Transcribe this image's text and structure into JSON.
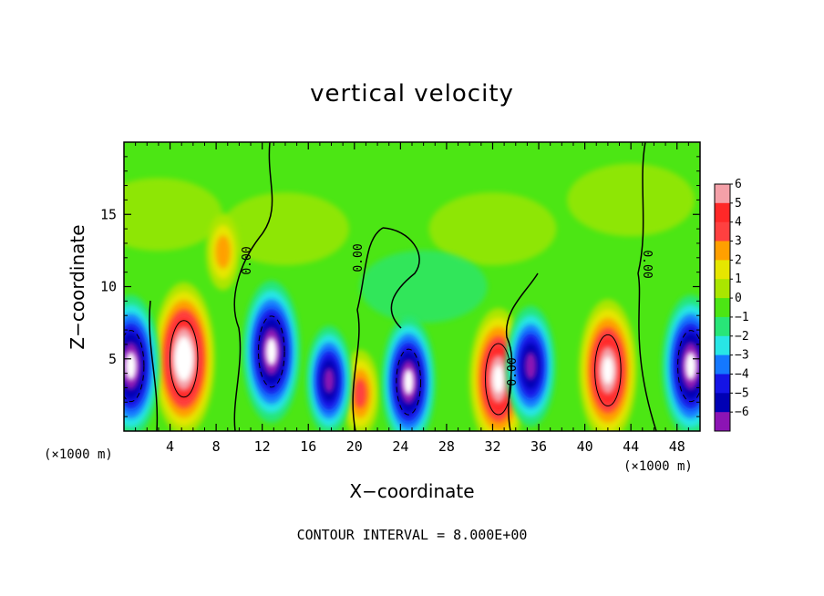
{
  "chart_data": {
    "type": "heatmap",
    "title": "vertical velocity",
    "xlabel": "X−coordinate",
    "ylabel": "Z−coordinate",
    "x_unit": "(×1000 m)",
    "xlim": [
      0,
      50
    ],
    "ylim": [
      0,
      20
    ],
    "x_ticks": [
      "4",
      "8",
      "12",
      "16",
      "20",
      "24",
      "28",
      "32",
      "36",
      "40",
      "44",
      "48"
    ],
    "x_tick_values": [
      4,
      8,
      12,
      16,
      20,
      24,
      28,
      32,
      36,
      40,
      44,
      48
    ],
    "y_ticks": [
      "5",
      "10",
      "15"
    ],
    "y_tick_values": [
      5,
      10,
      15
    ],
    "colorbar": {
      "levels": [
        6,
        5,
        4,
        3,
        2,
        1,
        0,
        -1,
        -2,
        -3,
        -4,
        -5,
        -6
      ],
      "labels": [
        "6",
        "5",
        "4",
        "3",
        "2",
        "1",
        "0",
        "−1",
        "−2",
        "−3",
        "−4",
        "−5",
        "−6"
      ],
      "colors": [
        "#f4a0a8",
        "#ff2828",
        "#ff4040",
        "#ffa000",
        "#e6e600",
        "#aae600",
        "#4ce614",
        "#28e678",
        "#28e6e6",
        "#1478ff",
        "#1414e6",
        "#0000b4",
        "#8c14b4"
      ]
    },
    "contour_labels": [
      "0.00",
      "0.00",
      "0.00",
      "0.00"
    ],
    "contour_interval_text": "CONTOUR INTERVAL = 8.000E+00",
    "features": [
      {
        "name": "updraft",
        "x": 5.2,
        "z": 5.0,
        "w": 10
      },
      {
        "name": "updraft",
        "x": 32.5,
        "z": 3.6,
        "w": 9
      },
      {
        "name": "updraft",
        "x": 42.0,
        "z": 4.2,
        "w": 9
      },
      {
        "name": "updraft",
        "x": 20.5,
        "z": 2.6,
        "w": 4
      },
      {
        "name": "updraft",
        "x": 8.6,
        "z": 12.4,
        "w": 3
      },
      {
        "name": "downdraft",
        "x": 0.6,
        "z": 4.5,
        "w": -9
      },
      {
        "name": "downdraft",
        "x": 12.8,
        "z": 5.5,
        "w": -9
      },
      {
        "name": "downdraft",
        "x": 17.8,
        "z": 3.5,
        "w": -6
      },
      {
        "name": "downdraft",
        "x": 24.7,
        "z": 3.4,
        "w": -8
      },
      {
        "name": "downdraft",
        "x": 35.3,
        "z": 4.5,
        "w": -7
      },
      {
        "name": "downdraft",
        "x": 49.2,
        "z": 4.5,
        "w": -9
      }
    ]
  },
  "footer": {
    "contour_interval": "CONTOUR INTERVAL = 8.000E+00"
  }
}
